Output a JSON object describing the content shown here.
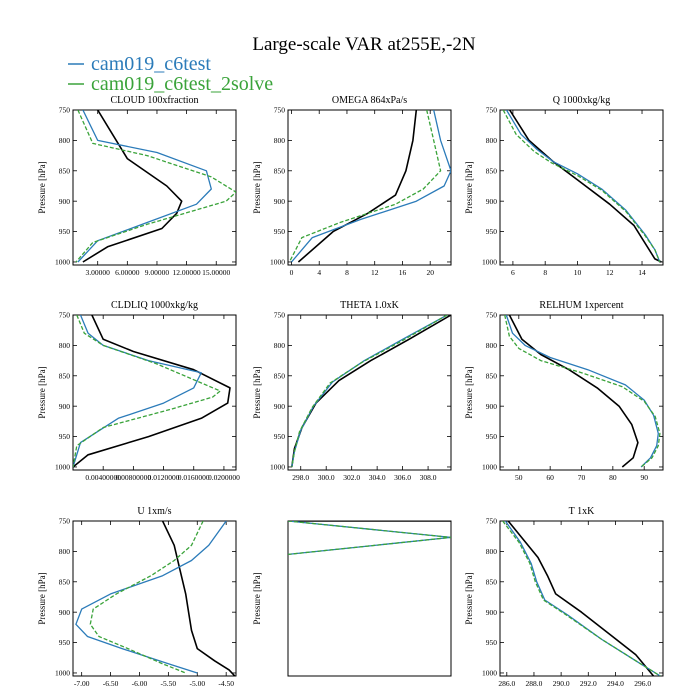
{
  "figure": {
    "title": "Large-scale VAR at255E,-2N",
    "legend": [
      {
        "name": "cam019_c6test",
        "color": "#2b7bb9"
      },
      {
        "name": "cam019_c6test_2solve",
        "color": "#3aa33a"
      }
    ],
    "ref_color": "#000000"
  },
  "chart_data": [
    {
      "type": "line",
      "title": "CLOUD  100xfraction",
      "ylabel": "Pressure [hPa]",
      "xlim": [
        0.5,
        17.0
      ],
      "ylim": [
        750,
        1005
      ],
      "xticks": [
        3,
        6,
        9,
        12,
        15
      ],
      "xtick_labels": [
        "3.00000",
        "6.00000",
        "9.00000",
        "12.00000",
        "15.00000"
      ],
      "yticks": [
        750,
        800,
        850,
        900,
        950,
        1000
      ],
      "series": [
        {
          "name": "cam019_c6test",
          "x": [
            1.5,
            3.0,
            9.0,
            14.0,
            14.5,
            13.0,
            8.0,
            3.0,
            1.0
          ],
          "y": [
            750,
            800,
            820,
            850,
            880,
            905,
            935,
            965,
            1000
          ]
        },
        {
          "name": "cam019_c6test_2solve",
          "x": [
            1.0,
            2.5,
            8.0,
            14.5,
            17.0,
            16.0,
            8.0,
            2.5,
            0.8
          ],
          "y": [
            750,
            805,
            825,
            860,
            885,
            900,
            938,
            968,
            1000
          ]
        },
        {
          "name": "reference",
          "x": [
            3.0,
            6.0,
            10.0,
            11.5,
            11.0,
            9.5,
            4.0,
            1.5
          ],
          "y": [
            750,
            830,
            875,
            900,
            920,
            945,
            975,
            1000
          ]
        }
      ]
    },
    {
      "type": "line",
      "title": "OMEGA  864xPa/s",
      "ylabel": "Pressure [hPa]",
      "xlim": [
        -0.5,
        23
      ],
      "ylim": [
        750,
        1005
      ],
      "xticks": [
        0,
        4,
        8,
        12,
        16,
        20
      ],
      "xtick_labels": [
        "0",
        "4",
        "8",
        "12",
        "16",
        "20"
      ],
      "yticks": [
        750,
        800,
        850,
        900,
        950,
        1000
      ],
      "series": [
        {
          "name": "cam019_c6test",
          "x": [
            20.5,
            21.5,
            23.0,
            22.0,
            18.0,
            10.0,
            3.0,
            0.0
          ],
          "y": [
            750,
            800,
            850,
            875,
            900,
            930,
            960,
            1000
          ]
        },
        {
          "name": "cam019_c6test_2solve",
          "x": [
            19.5,
            20.5,
            21.5,
            19.0,
            15.0,
            7.0,
            1.5,
            -0.3
          ],
          "y": [
            750,
            800,
            850,
            880,
            905,
            935,
            960,
            1000
          ]
        },
        {
          "name": "reference",
          "x": [
            18.0,
            17.5,
            16.5,
            15.0,
            11.0,
            6.0,
            1.0
          ],
          "y": [
            750,
            800,
            850,
            890,
            920,
            950,
            1000
          ]
        }
      ]
    },
    {
      "type": "line",
      "title": "Q  1000xkg/kg",
      "ylabel": "Pressure [hPa]",
      "xlim": [
        5.2,
        15.3
      ],
      "ylim": [
        750,
        1005
      ],
      "xticks": [
        6,
        8,
        10,
        12,
        14
      ],
      "xtick_labels": [
        "6",
        "8",
        "10",
        "12",
        "14"
      ],
      "yticks": [
        750,
        800,
        850,
        900,
        950,
        1000
      ],
      "series": [
        {
          "name": "cam019_c6test",
          "x": [
            5.6,
            6.5,
            7.5,
            8.5,
            10.0,
            11.5,
            13.0,
            14.2,
            14.8,
            15.1
          ],
          "y": [
            750,
            790,
            815,
            835,
            855,
            880,
            915,
            955,
            980,
            1000
          ]
        },
        {
          "name": "cam019_c6test_2solve",
          "x": [
            5.4,
            6.2,
            7.3,
            8.4,
            10.0,
            11.5,
            13.0,
            14.2,
            14.8,
            15.1
          ],
          "y": [
            750,
            790,
            818,
            837,
            858,
            882,
            917,
            957,
            980,
            1000
          ]
        },
        {
          "name": "reference",
          "x": [
            5.8,
            7.0,
            8.5,
            10.0,
            12.0,
            13.5,
            14.8,
            15.2
          ],
          "y": [
            750,
            800,
            835,
            865,
            905,
            940,
            995,
            1000
          ]
        }
      ]
    },
    {
      "type": "line",
      "title": "CLDLIQ  1000xkg/kg",
      "ylabel": "Pressure [hPa]",
      "xlim": [
        0.0,
        0.0216
      ],
      "ylim": [
        750,
        1005
      ],
      "xticks": [
        0.004,
        0.008,
        0.012,
        0.016,
        0.02
      ],
      "xtick_labels": [
        "0.00400000",
        "0.00800000",
        "0.0120000",
        "0.0160000",
        "0.0200000"
      ],
      "yticks": [
        750,
        800,
        850,
        900,
        950,
        1000
      ],
      "series": [
        {
          "name": "cam019_c6test",
          "x": [
            0.001,
            0.002,
            0.004,
            0.01,
            0.017,
            0.016,
            0.012,
            0.006,
            0.001,
            0.0
          ],
          "y": [
            750,
            780,
            800,
            825,
            845,
            870,
            895,
            920,
            960,
            1000
          ]
        },
        {
          "name": "cam019_c6test_2solve",
          "x": [
            0.0005,
            0.0015,
            0.004,
            0.011,
            0.0195,
            0.0185,
            0.013,
            0.004,
            0.0005,
            0.0
          ],
          "y": [
            750,
            780,
            800,
            830,
            875,
            885,
            905,
            935,
            965,
            1000
          ]
        },
        {
          "name": "reference",
          "x": [
            0.0025,
            0.004,
            0.008,
            0.016,
            0.0208,
            0.0205,
            0.017,
            0.01,
            0.002,
            0.0
          ],
          "y": [
            750,
            790,
            810,
            840,
            870,
            895,
            920,
            950,
            980,
            1000
          ]
        }
      ]
    },
    {
      "type": "line",
      "title": "THETA  1.0xK",
      "ylabel": "Pressure [hPa]",
      "xlim": [
        297.0,
        309.8
      ],
      "ylim": [
        750,
        1005
      ],
      "xticks": [
        298,
        300,
        302,
        304,
        306,
        308
      ],
      "xtick_labels": [
        "298.0",
        "300.0",
        "302.0",
        "304.0",
        "306.0",
        "308.0"
      ],
      "yticks": [
        750,
        800,
        850,
        900,
        950,
        1000
      ],
      "series": [
        {
          "name": "cam019_c6test",
          "x": [
            309.5,
            306.0,
            303.0,
            300.5,
            299.0,
            298.0,
            297.5,
            297.3
          ],
          "y": [
            750,
            790,
            825,
            860,
            900,
            940,
            975,
            1000
          ]
        },
        {
          "name": "cam019_c6test_2solve",
          "x": [
            309.5,
            306.0,
            302.8,
            300.3,
            298.9,
            297.9,
            297.5,
            297.3
          ],
          "y": [
            750,
            792,
            828,
            862,
            902,
            942,
            975,
            1000
          ]
        },
        {
          "name": "reference",
          "x": [
            309.8,
            306.5,
            303.5,
            301.0,
            299.2,
            298.1,
            297.5,
            297.3
          ],
          "y": [
            750,
            790,
            825,
            858,
            895,
            935,
            970,
            1000
          ]
        }
      ]
    },
    {
      "type": "line",
      "title": "RELHUM  1xpercent",
      "ylabel": "Pressure [hPa]",
      "xlim": [
        44,
        96
      ],
      "ylim": [
        750,
        1005
      ],
      "xticks": [
        50,
        60,
        70,
        80,
        90
      ],
      "xtick_labels": [
        "50",
        "60",
        "70",
        "80",
        "90"
      ],
      "yticks": [
        750,
        800,
        850,
        900,
        950,
        1000
      ],
      "series": [
        {
          "name": "cam019_c6test",
          "x": [
            46.0,
            48.0,
            52.0,
            60.0,
            72.0,
            84.0,
            90.0,
            93.0,
            94.5,
            94.0,
            92.0,
            89.0
          ],
          "y": [
            750,
            780,
            800,
            820,
            840,
            865,
            890,
            915,
            945,
            965,
            985,
            1000
          ]
        },
        {
          "name": "cam019_c6test_2solve",
          "x": [
            45.5,
            47.0,
            50.0,
            57.0,
            70.0,
            83.0,
            90.0,
            93.5,
            95.0,
            94.5,
            92.5,
            89.0
          ],
          "y": [
            750,
            785,
            805,
            825,
            845,
            868,
            892,
            917,
            945,
            965,
            985,
            1000
          ]
        },
        {
          "name": "reference",
          "x": [
            47.0,
            51.0,
            57.0,
            66.0,
            75.0,
            82.0,
            86.0,
            88.0,
            86.5,
            83.0
          ],
          "y": [
            750,
            790,
            815,
            840,
            870,
            900,
            930,
            960,
            985,
            1000
          ]
        }
      ]
    },
    {
      "type": "line",
      "title": "U  1xm/s",
      "ylabel": "Pressure [hPa]",
      "xlim": [
        -7.15,
        -4.33
      ],
      "ylim": [
        750,
        1005
      ],
      "xticks": [
        -7.0,
        -6.5,
        -6.0,
        -5.5,
        -5.0,
        -4.5
      ],
      "xtick_labels": [
        "-7.00",
        "-6.50",
        "-6.00",
        "-5.50",
        "-5.00",
        "-4.50"
      ],
      "yticks": [
        750,
        800,
        850,
        900,
        950,
        1000
      ],
      "series": [
        {
          "name": "cam019_c6test",
          "x": [
            -4.5,
            -4.8,
            -5.1,
            -5.6,
            -6.5,
            -7.0,
            -7.1,
            -6.9,
            -6.3,
            -5.5,
            -5.0
          ],
          "y": [
            750,
            790,
            815,
            840,
            870,
            895,
            920,
            940,
            960,
            985,
            1000
          ]
        },
        {
          "name": "cam019_c6test_2solve",
          "x": [
            -4.9,
            -5.1,
            -5.4,
            -5.8,
            -6.4,
            -6.8,
            -6.85,
            -6.7,
            -6.2,
            -5.6,
            -5.2
          ],
          "y": [
            750,
            790,
            815,
            840,
            870,
            895,
            920,
            940,
            960,
            985,
            1000
          ]
        },
        {
          "name": "reference",
          "x": [
            -5.6,
            -5.4,
            -5.3,
            -5.2,
            -5.15,
            -5.1,
            -5.0,
            -4.7,
            -4.45,
            -4.35
          ],
          "y": [
            750,
            790,
            830,
            870,
            900,
            930,
            960,
            980,
            995,
            1005
          ]
        }
      ]
    },
    {
      "type": "line",
      "title": "",
      "ylabel": "Pressure [hPa]",
      "xlim": [
        0,
        1
      ],
      "ylim": [
        750,
        1005
      ],
      "xticks": [],
      "xtick_labels": [],
      "yticks": [],
      "series": [
        {
          "name": "cam019_c6test",
          "x": [
            0.0,
            1.0,
            0.0
          ],
          "y": [
            750,
            777,
            805
          ]
        },
        {
          "name": "cam019_c6test_2solve",
          "x": [
            0.0,
            1.0,
            0.0
          ],
          "y": [
            750,
            777,
            805
          ]
        },
        {
          "name": "reference",
          "x": [
            0.0,
            1.0
          ],
          "y": [
            750,
            750
          ]
        }
      ]
    },
    {
      "type": "line",
      "title": "T  1xK",
      "ylabel": "Pressure [hPa]",
      "xlim": [
        285.5,
        297.5
      ],
      "ylim": [
        750,
        1005
      ],
      "xticks": [
        286,
        288,
        290,
        292,
        294,
        296
      ],
      "xtick_labels": [
        "286.0",
        "288.0",
        "290.0",
        "292.0",
        "294.0",
        "296.0"
      ],
      "yticks": [
        750,
        800,
        850,
        900,
        950,
        1000
      ],
      "series": [
        {
          "name": "cam019_c6test",
          "x": [
            285.9,
            287.0,
            287.8,
            288.2,
            288.8,
            290.5,
            293.0,
            295.5,
            297.3
          ],
          "y": [
            750,
            785,
            820,
            850,
            880,
            905,
            945,
            980,
            1005
          ]
        },
        {
          "name": "cam019_c6test_2solve",
          "x": [
            285.7,
            286.9,
            287.7,
            288.1,
            288.7,
            290.4,
            293.0,
            295.5,
            297.3
          ],
          "y": [
            750,
            785,
            820,
            850,
            880,
            905,
            945,
            980,
            1005
          ]
        },
        {
          "name": "reference",
          "x": [
            286.1,
            287.2,
            288.3,
            289.0,
            289.6,
            291.5,
            293.5,
            295.5,
            296.8
          ],
          "y": [
            750,
            780,
            810,
            840,
            870,
            900,
            935,
            970,
            1005
          ]
        }
      ]
    }
  ]
}
